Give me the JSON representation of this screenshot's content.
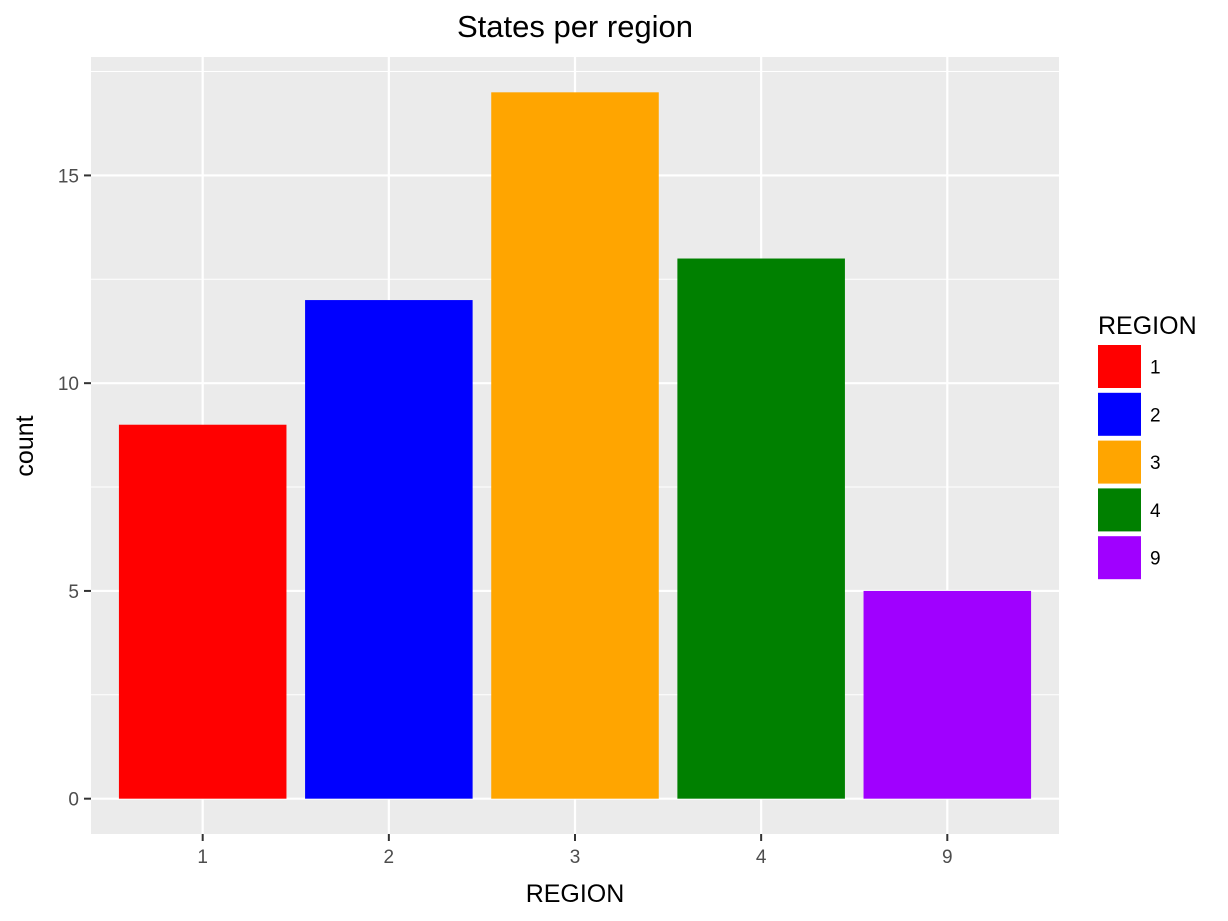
{
  "chart_data": {
    "type": "bar",
    "title": "States per region",
    "xlabel": "REGION",
    "ylabel": "count",
    "categories": [
      "1",
      "2",
      "3",
      "4",
      "9"
    ],
    "values": [
      9,
      12,
      17,
      13,
      5
    ],
    "colors": [
      "#ff0000",
      "#0000ff",
      "#ffa500",
      "#008000",
      "#a000ff"
    ],
    "ylim": [
      -0.85,
      17.85
    ],
    "y_ticks": [
      0,
      5,
      10,
      15
    ],
    "y_tick_labels": [
      "0",
      "5",
      "10",
      "15"
    ],
    "grid": true,
    "panel_background": "#ebebeb",
    "grid_color": "#ffffff",
    "legend": {
      "title": "REGION",
      "placement": "right",
      "entries": [
        "1",
        "2",
        "3",
        "4",
        "9"
      ]
    }
  }
}
